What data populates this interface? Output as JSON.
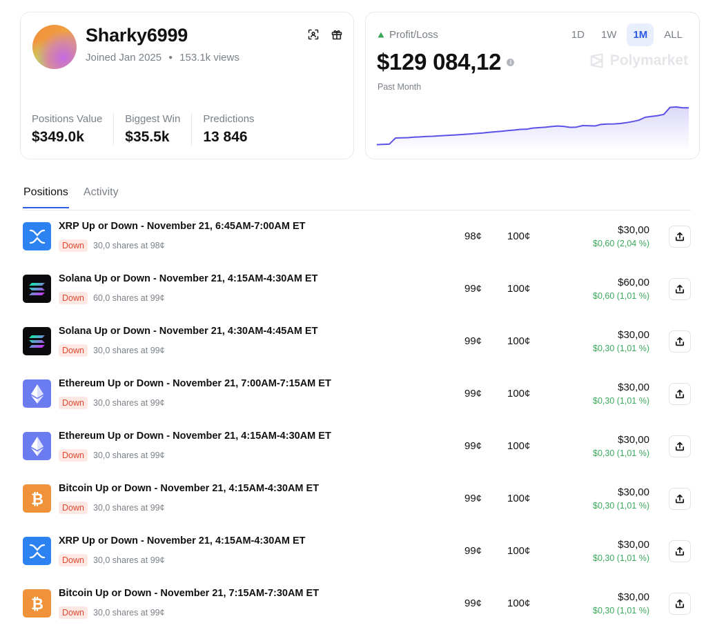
{
  "profile": {
    "username": "Sharky6999",
    "joined": "Joined Jan 2025",
    "views": "153.1k views",
    "stats": [
      {
        "label": "Positions Value",
        "value": "$349.0k"
      },
      {
        "label": "Biggest Win",
        "value": "$35.5k"
      },
      {
        "label": "Predictions",
        "value": "13 846"
      }
    ],
    "icons": [
      "scan-icon",
      "gift-icon"
    ]
  },
  "pnl": {
    "label": "Profit/Loss",
    "value": "$129 084,12",
    "period": "Past Month",
    "ranges": [
      "1D",
      "1W",
      "1M",
      "ALL"
    ],
    "active_range": "1M",
    "brand": "Polymarket",
    "accent": "#5b50e8"
  },
  "chart_data": {
    "type": "area",
    "title": "",
    "xlabel": "",
    "ylabel": "",
    "x": [
      0,
      1,
      2,
      3,
      4,
      5,
      6,
      7,
      8,
      9,
      10,
      11,
      12,
      13,
      14,
      15,
      16,
      17,
      18,
      19,
      20,
      21,
      22,
      23,
      24,
      25,
      26,
      27,
      28,
      29,
      30,
      31,
      32,
      33,
      34,
      35,
      36,
      37,
      38,
      39,
      40,
      41,
      42,
      43,
      44,
      45,
      46,
      47,
      48,
      49,
      50
    ],
    "values": [
      2,
      2.3,
      2.6,
      10,
      10.2,
      10.4,
      11,
      11.3,
      11.8,
      12.1,
      12.6,
      13,
      13.4,
      13.8,
      14.4,
      14.9,
      15.5,
      16,
      16.8,
      17.5,
      18.2,
      19,
      19.6,
      20.4,
      20.6,
      22,
      22.5,
      23,
      23.8,
      24.5,
      24,
      22.8,
      23.2,
      25,
      24.8,
      24.6,
      26.5,
      26.8,
      27,
      27.5,
      28.5,
      29.8,
      31.5,
      35,
      36,
      37,
      38.5,
      47,
      47.5,
      46.5,
      46.5
    ],
    "ylim": [
      0,
      50
    ],
    "grid": false,
    "color": "#5b50e8"
  },
  "tabs": [
    {
      "label": "Positions",
      "active": true
    },
    {
      "label": "Activity",
      "active": false
    }
  ],
  "positions": [
    {
      "icon": "xrp",
      "title": "XRP Up or Down - November 21, 6:45AM-7:00AM ET",
      "outcome": "Down",
      "shares": "30,0 shares at 98¢",
      "avg": "98¢",
      "current": "100¢",
      "value": "$30,00",
      "pl": "$0,60 (2,04 %)"
    },
    {
      "icon": "sol",
      "title": "Solana Up or Down - November 21, 4:15AM-4:30AM ET",
      "outcome": "Down",
      "shares": "60,0 shares at 99¢",
      "avg": "99¢",
      "current": "100¢",
      "value": "$60,00",
      "pl": "$0,60 (1,01 %)"
    },
    {
      "icon": "sol",
      "title": "Solana Up or Down - November 21, 4:30AM-4:45AM ET",
      "outcome": "Down",
      "shares": "30,0 shares at 99¢",
      "avg": "99¢",
      "current": "100¢",
      "value": "$30,00",
      "pl": "$0,30 (1,01 %)"
    },
    {
      "icon": "eth",
      "title": "Ethereum Up or Down - November 21, 7:00AM-7:15AM ET",
      "outcome": "Down",
      "shares": "30,0 shares at 99¢",
      "avg": "99¢",
      "current": "100¢",
      "value": "$30,00",
      "pl": "$0,30 (1,01 %)"
    },
    {
      "icon": "eth",
      "title": "Ethereum Up or Down - November 21, 4:15AM-4:30AM ET",
      "outcome": "Down",
      "shares": "30,0 shares at 99¢",
      "avg": "99¢",
      "current": "100¢",
      "value": "$30,00",
      "pl": "$0,30 (1,01 %)"
    },
    {
      "icon": "btc",
      "title": "Bitcoin Up or Down - November 21, 4:15AM-4:30AM ET",
      "outcome": "Down",
      "shares": "30,0 shares at 99¢",
      "avg": "99¢",
      "current": "100¢",
      "value": "$30,00",
      "pl": "$0,30 (1,01 %)"
    },
    {
      "icon": "xrp",
      "title": "XRP Up or Down - November 21, 4:15AM-4:30AM ET",
      "outcome": "Down",
      "shares": "30,0 shares at 99¢",
      "avg": "99¢",
      "current": "100¢",
      "value": "$30,00",
      "pl": "$0,30 (1,01 %)"
    },
    {
      "icon": "btc",
      "title": "Bitcoin Up or Down - November 21, 7:15AM-7:30AM ET",
      "outcome": "Down",
      "shares": "30,0 shares at 99¢",
      "avg": "99¢",
      "current": "100¢",
      "value": "$30,00",
      "pl": "$0,30 (1,01 %)"
    }
  ]
}
